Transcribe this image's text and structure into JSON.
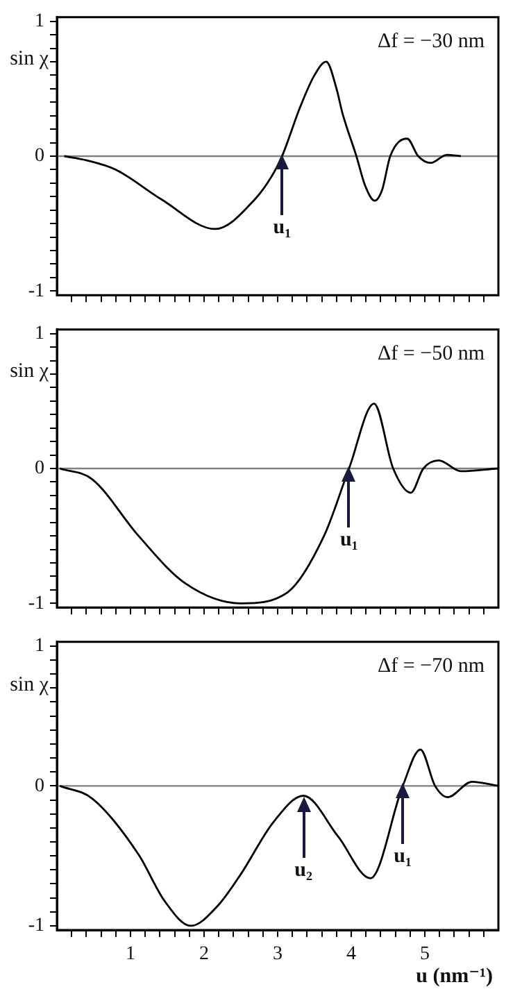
{
  "chart_data": [
    {
      "type": "line",
      "title": "Δf = −30 nm",
      "ylabel": "sin χ",
      "tick_labels": "y",
      "xlim": [
        0,
        6
      ],
      "ylim": [
        -1.03,
        1.03
      ],
      "xticks": [
        {
          "value": 0.2,
          "label": null
        },
        {
          "value": 0.4,
          "label": null
        },
        {
          "value": 0.6,
          "label": null
        },
        {
          "value": 0.8,
          "label": null
        },
        {
          "value": 1,
          "label": null
        },
        {
          "value": 1.2,
          "label": null
        },
        {
          "value": 1.4,
          "label": null
        },
        {
          "value": 1.6,
          "label": null
        },
        {
          "value": 1.8,
          "label": null
        },
        {
          "value": 2,
          "label": null
        },
        {
          "value": 2.2,
          "label": null
        },
        {
          "value": 2.4,
          "label": null
        },
        {
          "value": 2.6,
          "label": null
        },
        {
          "value": 2.8,
          "label": null
        },
        {
          "value": 3,
          "label": null
        },
        {
          "value": 3.2,
          "label": null
        },
        {
          "value": 3.4,
          "label": null
        },
        {
          "value": 3.6,
          "label": null
        },
        {
          "value": 3.8,
          "label": null
        },
        {
          "value": 4,
          "label": null
        },
        {
          "value": 4.2,
          "label": null
        },
        {
          "value": 4.4,
          "label": null
        },
        {
          "value": 4.6,
          "label": null
        },
        {
          "value": 4.8,
          "label": null
        },
        {
          "value": 5,
          "label": null
        },
        {
          "value": 5.2,
          "label": null
        },
        {
          "value": 5.4,
          "label": null
        },
        {
          "value": 5.6,
          "label": null
        },
        {
          "value": 5.8,
          "label": null
        }
      ],
      "yticks": [
        -1,
        {
          "value": -0.9,
          "label": null
        },
        {
          "value": -0.8,
          "label": null
        },
        {
          "value": -0.7,
          "label": null
        },
        {
          "value": -0.6,
          "label": null
        },
        {
          "value": -0.5,
          "label": null
        },
        {
          "value": -0.4,
          "label": null
        },
        {
          "value": -0.3,
          "label": null
        },
        {
          "value": -0.2,
          "label": null
        },
        {
          "value": -0.1,
          "label": null
        },
        0,
        {
          "value": 0.1,
          "label": null
        },
        {
          "value": 0.2,
          "label": null
        },
        {
          "value": 0.3,
          "label": null
        },
        {
          "value": 0.4,
          "label": null
        },
        {
          "value": 0.5,
          "label": null
        },
        {
          "value": 0.6,
          "label": null
        },
        {
          "value": 0.7,
          "label": null
        },
        {
          "value": 0.8,
          "label": null
        },
        {
          "value": 0.9,
          "label": null
        },
        1
      ],
      "ref_lines": [
        {
          "axis": "y",
          "value": 0,
          "color": "#808080"
        }
      ],
      "annotations": [
        {
          "text": "u₁",
          "x": 3.06,
          "y": 0
        }
      ],
      "series": [
        {
          "color": "#000000",
          "x": [
            0.1,
            0.4,
            0.8,
            1.42,
            2.15,
            2.69,
            2.94,
            3.06,
            3.31,
            3.5,
            3.66,
            3.8,
            3.88,
            4.07,
            4.19,
            4.32,
            4.42,
            4.53,
            4.76,
            4.91,
            5.08,
            5.3,
            5.49
          ],
          "values": [
            0,
            -0.03,
            -0.1,
            -0.32,
            -0.54,
            -0.32,
            -0.13,
            0,
            0.37,
            0.6,
            0.7,
            0.5,
            0.32,
            0,
            -0.22,
            -0.33,
            -0.25,
            0,
            0.13,
            0,
            -0.05,
            0.01,
            0
          ]
        }
      ]
    },
    {
      "type": "line",
      "title": "Δf = −50 nm",
      "ylabel": "sin χ",
      "tick_labels": "y",
      "xlim": [
        0,
        6
      ],
      "ylim": [
        -1.03,
        1.03
      ],
      "xticks": [
        {
          "value": 0.2,
          "label": null
        },
        {
          "value": 0.4,
          "label": null
        },
        {
          "value": 0.6,
          "label": null
        },
        {
          "value": 0.8,
          "label": null
        },
        {
          "value": 1,
          "label": null
        },
        {
          "value": 1.2,
          "label": null
        },
        {
          "value": 1.4,
          "label": null
        },
        {
          "value": 1.6,
          "label": null
        },
        {
          "value": 1.8,
          "label": null
        },
        {
          "value": 2,
          "label": null
        },
        {
          "value": 2.2,
          "label": null
        },
        {
          "value": 2.4,
          "label": null
        },
        {
          "value": 2.6,
          "label": null
        },
        {
          "value": 2.8,
          "label": null
        },
        {
          "value": 3,
          "label": null
        },
        {
          "value": 3.2,
          "label": null
        },
        {
          "value": 3.4,
          "label": null
        },
        {
          "value": 3.6,
          "label": null
        },
        {
          "value": 3.8,
          "label": null
        },
        {
          "value": 4,
          "label": null
        },
        {
          "value": 4.2,
          "label": null
        },
        {
          "value": 4.4,
          "label": null
        },
        {
          "value": 4.6,
          "label": null
        },
        {
          "value": 4.8,
          "label": null
        },
        {
          "value": 5,
          "label": null
        },
        {
          "value": 5.2,
          "label": null
        },
        {
          "value": 5.4,
          "label": null
        },
        {
          "value": 5.6,
          "label": null
        },
        {
          "value": 5.8,
          "label": null
        }
      ],
      "yticks": [
        -1,
        {
          "value": -0.9,
          "label": null
        },
        {
          "value": -0.8,
          "label": null
        },
        {
          "value": -0.7,
          "label": null
        },
        {
          "value": -0.6,
          "label": null
        },
        {
          "value": -0.5,
          "label": null
        },
        {
          "value": -0.4,
          "label": null
        },
        {
          "value": -0.3,
          "label": null
        },
        {
          "value": -0.2,
          "label": null
        },
        {
          "value": -0.1,
          "label": null
        },
        0,
        {
          "value": 0.1,
          "label": null
        },
        {
          "value": 0.2,
          "label": null
        },
        {
          "value": 0.3,
          "label": null
        },
        {
          "value": 0.4,
          "label": null
        },
        {
          "value": 0.5,
          "label": null
        },
        {
          "value": 0.6,
          "label": null
        },
        {
          "value": 0.7,
          "label": null
        },
        {
          "value": 0.8,
          "label": null
        },
        {
          "value": 0.9,
          "label": null
        },
        1
      ],
      "ref_lines": [
        {
          "axis": "y",
          "value": 0,
          "color": "#808080"
        }
      ],
      "annotations": [
        {
          "text": "u₁",
          "x": 3.97,
          "y": 0
        }
      ],
      "series": [
        {
          "color": "#000000",
          "x": [
            0.04,
            0.48,
            1.11,
            1.74,
            2.5,
            3.13,
            3.63,
            3.97,
            4.31,
            4.57,
            4.81,
            4.98,
            5.19,
            5.49,
            5.99
          ],
          "values": [
            0,
            -0.08,
            -0.5,
            -0.85,
            -1,
            -0.92,
            -0.5,
            0,
            0.48,
            0,
            -0.18,
            0,
            0.06,
            -0.02,
            0
          ]
        }
      ]
    },
    {
      "type": "line",
      "title": "Δf = −70 nm",
      "ylabel": "sin χ",
      "xlabel": "u (nm⁻¹)",
      "xlim": [
        0,
        6
      ],
      "ylim": [
        -1.03,
        1.03
      ],
      "xticks": [
        {
          "value": 0.2,
          "label": null
        },
        {
          "value": 0.4,
          "label": null
        },
        {
          "value": 0.6,
          "label": null
        },
        {
          "value": 0.8,
          "label": null
        },
        1,
        {
          "value": 1.2,
          "label": null
        },
        {
          "value": 1.4,
          "label": null
        },
        {
          "value": 1.6,
          "label": null
        },
        {
          "value": 1.8,
          "label": null
        },
        2,
        {
          "value": 2.2,
          "label": null
        },
        {
          "value": 2.4,
          "label": null
        },
        {
          "value": 2.6,
          "label": null
        },
        {
          "value": 2.8,
          "label": null
        },
        3,
        {
          "value": 3.2,
          "label": null
        },
        {
          "value": 3.4,
          "label": null
        },
        {
          "value": 3.6,
          "label": null
        },
        {
          "value": 3.8,
          "label": null
        },
        4,
        {
          "value": 4.2,
          "label": null
        },
        {
          "value": 4.4,
          "label": null
        },
        {
          "value": 4.6,
          "label": null
        },
        {
          "value": 4.8,
          "label": null
        },
        5,
        {
          "value": 5.2,
          "label": null
        },
        {
          "value": 5.4,
          "label": null
        },
        {
          "value": 5.6,
          "label": null
        },
        {
          "value": 5.8,
          "label": null
        }
      ],
      "yticks": [
        -1,
        {
          "value": -0.9,
          "label": null
        },
        {
          "value": -0.8,
          "label": null
        },
        {
          "value": -0.7,
          "label": null
        },
        {
          "value": -0.6,
          "label": null
        },
        {
          "value": -0.5,
          "label": null
        },
        {
          "value": -0.4,
          "label": null
        },
        {
          "value": -0.3,
          "label": null
        },
        {
          "value": -0.2,
          "label": null
        },
        {
          "value": -0.1,
          "label": null
        },
        0,
        {
          "value": 0.1,
          "label": null
        },
        {
          "value": 0.2,
          "label": null
        },
        {
          "value": 0.3,
          "label": null
        },
        {
          "value": 0.4,
          "label": null
        },
        {
          "value": 0.5,
          "label": null
        },
        {
          "value": 0.6,
          "label": null
        },
        {
          "value": 0.7,
          "label": null
        },
        {
          "value": 0.8,
          "label": null
        },
        {
          "value": 0.9,
          "label": null
        },
        1
      ],
      "ref_lines": [
        {
          "axis": "y",
          "value": 0,
          "color": "#808080"
        }
      ],
      "annotations": [
        {
          "text": "u₂",
          "x": 3.35,
          "y": -0.1
        },
        {
          "text": "u₁",
          "x": 4.7,
          "y": 0
        }
      ],
      "series": [
        {
          "color": "#000000",
          "x": [
            0.04,
            0.48,
            1.11,
            1.46,
            1.82,
            2.18,
            2.5,
            2.94,
            3.35,
            3.82,
            4.26,
            4.7,
            4.94,
            5.14,
            5.31,
            5.64,
            6.0
          ],
          "values": [
            0,
            -0.09,
            -0.49,
            -0.82,
            -1,
            -0.86,
            -0.63,
            -0.26,
            -0.07,
            -0.36,
            -0.66,
            0,
            0.26,
            0,
            -0.08,
            0.03,
            0
          ]
        }
      ]
    }
  ]
}
